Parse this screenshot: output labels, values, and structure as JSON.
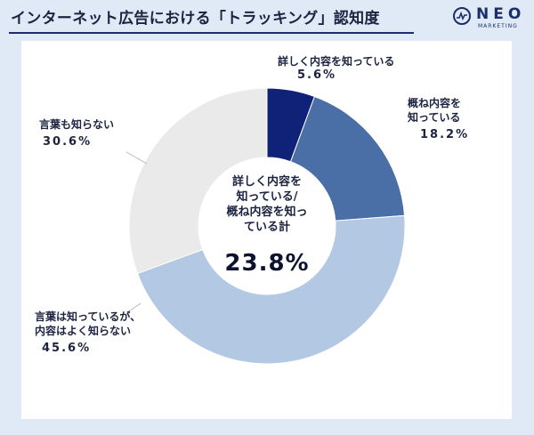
{
  "title": "インターネット広告における「トラッキング」認知度",
  "logo": {
    "name": "NEO",
    "sub": "MARKETING",
    "icon": "pulse-icon"
  },
  "chart_data": {
    "type": "pie",
    "labels": [
      "詳しく内容を知っている",
      "概ね内容を知っている",
      "言葉は知っているが、内容はよく知らない",
      "言葉も知らない"
    ],
    "label_lines": [
      [
        "詳しく内容を知っている"
      ],
      [
        "概ね内容を",
        "知っている"
      ],
      [
        "言葉は知っているが、",
        "内容はよく知らない"
      ],
      [
        "言葉も知らない"
      ]
    ],
    "values": [
      5.6,
      18.2,
      45.6,
      30.6
    ],
    "value_labels": [
      "5.6%",
      "18.2%",
      "45.6%",
      "30.6%"
    ],
    "colors": [
      "#102277",
      "#4a6ea6",
      "#b2c8e3",
      "#eaeaea"
    ],
    "center_label_lines": [
      "詳しく内容を",
      "知っている/",
      "概ね内容を知っ",
      "ている計"
    ],
    "center_value": "23.8%"
  }
}
